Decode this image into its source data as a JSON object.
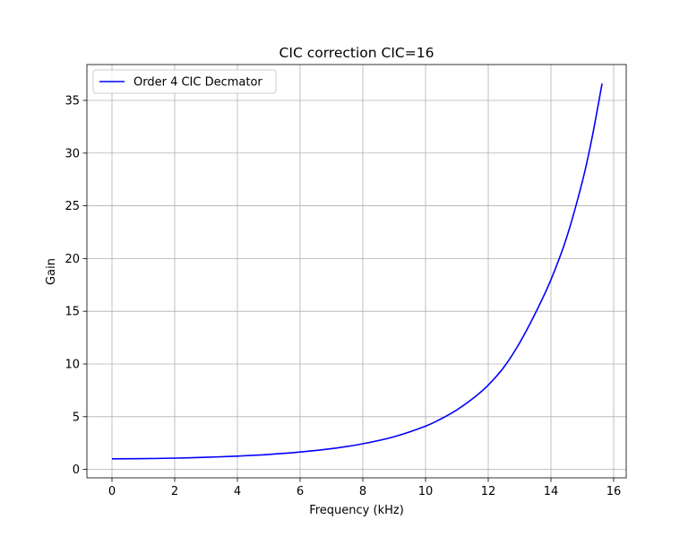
{
  "chart_data": {
    "type": "line",
    "title": "CIC correction CIC=16",
    "xlabel": "Frequency (kHz)",
    "ylabel": "Gain",
    "xlim": [
      -0.8,
      16.4
    ],
    "ylim": [
      -0.8,
      38.4
    ],
    "xticks": [
      0,
      2,
      4,
      6,
      8,
      10,
      12,
      14,
      16
    ],
    "yticks": [
      0,
      5,
      10,
      15,
      20,
      25,
      30,
      35
    ],
    "grid": true,
    "legend_position": "upper-left",
    "series": [
      {
        "name": "Order 4 CIC Decmator",
        "color": "#0000ff",
        "x": [
          0,
          1,
          2,
          3,
          4,
          5,
          6,
          7,
          8,
          9,
          10,
          10.5,
          11,
          11.5,
          12,
          12.5,
          13,
          13.5,
          14,
          14.5,
          15,
          15.3,
          15.63
        ],
        "y": [
          1.0,
          1.02,
          1.07,
          1.15,
          1.26,
          1.42,
          1.65,
          1.97,
          2.43,
          3.1,
          4.1,
          4.8,
          5.65,
          6.7,
          8.0,
          9.7,
          12.0,
          14.8,
          18.0,
          22.0,
          27.3,
          31.3,
          36.6
        ]
      }
    ]
  }
}
